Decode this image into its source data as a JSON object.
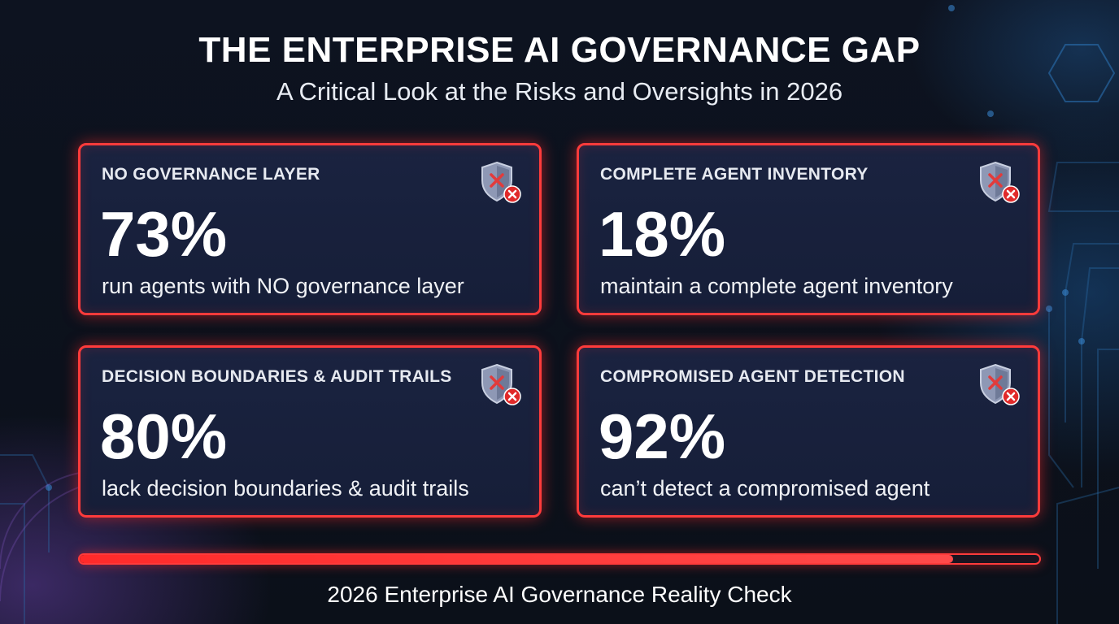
{
  "header": {
    "title": "THE ENTERPRISE AI GOVERNANCE GAP",
    "subtitle": "A Critical Look at the Risks and Oversights in 2026"
  },
  "cards": [
    {
      "heading": "NO GOVERNANCE LAYER",
      "value": "73%",
      "description": "run agents with NO governance layer",
      "icon": "shield-x-icon"
    },
    {
      "heading": "COMPLETE AGENT INVENTORY",
      "value": "18%",
      "description": "maintain a complete agent inventory",
      "icon": "shield-x-icon"
    },
    {
      "heading": "DECISION BOUNDARIES & AUDIT TRAILS",
      "value": "80%",
      "description": "lack decision boundaries & audit trails",
      "icon": "shield-x-icon"
    },
    {
      "heading": "COMPROMISED AGENT DETECTION",
      "value": "92%",
      "description": "can’t detect a compromised agent",
      "icon": "shield-x-icon"
    }
  ],
  "progress": {
    "percent": 91
  },
  "footer": {
    "caption": "2026 Enterprise AI Governance Reality Check"
  },
  "colors": {
    "accent": "#ff3b3b",
    "card_bg": "#1a2340",
    "background": "#0d1320"
  }
}
